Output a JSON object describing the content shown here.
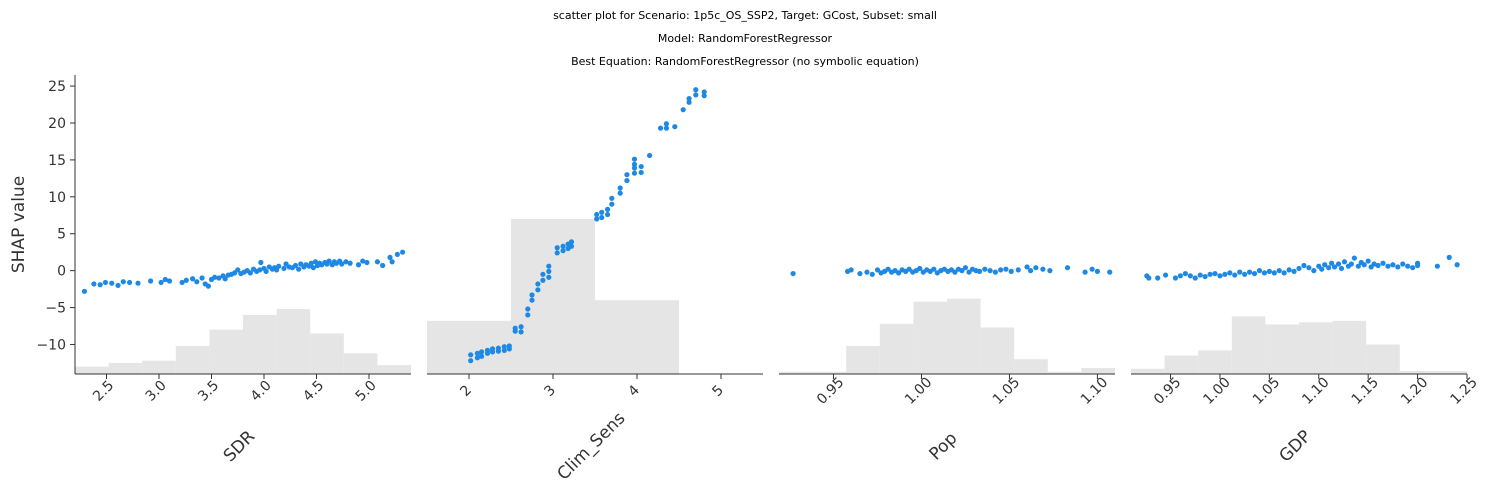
{
  "title_lines": [
    "scatter plot for Scenario: 1p5c_OS_SSP2, Target: GCost, Subset: small",
    "Model: RandomForestRegressor",
    "Best Equation: RandomForestRegressor (no symbolic equation)"
  ],
  "colors": {
    "points": "#1e88e5",
    "histogram": "#e5e5e5",
    "axis": "#333333"
  },
  "chart_data": [
    {
      "type": "scatter",
      "xlabel": "SDR",
      "ylabel": "SHAP value",
      "xlim": [
        2.2,
        5.4
      ],
      "ylim": [
        -14,
        26.5
      ],
      "xticks": [
        2.5,
        3.0,
        3.5,
        4.0,
        4.5,
        5.0
      ],
      "xtick_labels": [
        "2.5",
        "3.0",
        "3.5",
        "4.0",
        "4.5",
        "5.0"
      ],
      "yticks": [
        -10,
        -5,
        0,
        5,
        10,
        15,
        20,
        25
      ],
      "ytick_labels": [
        "−10",
        "−5",
        "0",
        "5",
        "10",
        "15",
        "20",
        "25"
      ],
      "histogram": {
        "edges": [
          2.2,
          2.52,
          2.84,
          3.16,
          3.48,
          3.8,
          4.12,
          4.44,
          4.76,
          5.08,
          5.4
        ],
        "tops": [
          -13.0,
          -12.5,
          -12.2,
          -10.2,
          -8.0,
          -6.0,
          -5.2,
          -8.5,
          -11.2,
          -12.8
        ]
      },
      "points": [
        [
          2.29,
          -2.8
        ],
        [
          2.38,
          -1.8
        ],
        [
          2.44,
          -1.9
        ],
        [
          2.49,
          -1.6
        ],
        [
          2.55,
          -1.7
        ],
        [
          2.61,
          -2.0
        ],
        [
          2.66,
          -1.5
        ],
        [
          2.72,
          -1.6
        ],
        [
          2.8,
          -1.7
        ],
        [
          2.92,
          -1.4
        ],
        [
          3.02,
          -1.6
        ],
        [
          3.06,
          -1.2
        ],
        [
          3.1,
          -1.4
        ],
        [
          3.22,
          -1.6
        ],
        [
          3.26,
          -1.3
        ],
        [
          3.32,
          -1.1
        ],
        [
          3.36,
          -1.5
        ],
        [
          3.41,
          -1.0
        ],
        [
          3.44,
          -1.8
        ],
        [
          3.47,
          -2.1
        ],
        [
          3.5,
          -1.2
        ],
        [
          3.53,
          -0.9
        ],
        [
          3.57,
          -1.0
        ],
        [
          3.61,
          -0.7
        ],
        [
          3.63,
          -1.1
        ],
        [
          3.66,
          -0.6
        ],
        [
          3.69,
          -0.5
        ],
        [
          3.72,
          -0.3
        ],
        [
          3.75,
          0.1
        ],
        [
          3.78,
          -0.4
        ],
        [
          3.81,
          -0.2
        ],
        [
          3.84,
          0.0
        ],
        [
          3.87,
          -0.3
        ],
        [
          3.9,
          0.2
        ],
        [
          3.93,
          -0.1
        ],
        [
          3.96,
          0.1
        ],
        [
          3.97,
          1.1
        ],
        [
          4.0,
          0.3
        ],
        [
          4.02,
          -0.1
        ],
        [
          4.05,
          0.5
        ],
        [
          4.08,
          0.2
        ],
        [
          4.1,
          0.4
        ],
        [
          4.12,
          0.1
        ],
        [
          4.14,
          0.6
        ],
        [
          4.19,
          0.3
        ],
        [
          4.21,
          0.9
        ],
        [
          4.24,
          0.5
        ],
        [
          4.27,
          0.4
        ],
        [
          4.3,
          0.7
        ],
        [
          4.33,
          0.2
        ],
        [
          4.35,
          0.9
        ],
        [
          4.38,
          0.5
        ],
        [
          4.4,
          0.8
        ],
        [
          4.43,
          0.6
        ],
        [
          4.45,
          1.0
        ],
        [
          4.47,
          0.4
        ],
        [
          4.49,
          1.2
        ],
        [
          4.51,
          0.7
        ],
        [
          4.53,
          1.0
        ],
        [
          4.55,
          0.8
        ],
        [
          4.58,
          1.1
        ],
        [
          4.6,
          0.9
        ],
        [
          4.62,
          1.3
        ],
        [
          4.65,
          0.8
        ],
        [
          4.67,
          1.2
        ],
        [
          4.69,
          1.0
        ],
        [
          4.72,
          1.3
        ],
        [
          4.74,
          0.9
        ],
        [
          4.78,
          1.2
        ],
        [
          4.82,
          1.0
        ],
        [
          4.9,
          0.8
        ],
        [
          4.94,
          1.3
        ],
        [
          4.98,
          1.1
        ],
        [
          5.08,
          1.2
        ],
        [
          5.13,
          0.7
        ],
        [
          5.2,
          1.8
        ],
        [
          5.22,
          1.2
        ],
        [
          5.27,
          2.2
        ],
        [
          5.32,
          2.5
        ]
      ]
    },
    {
      "type": "scatter",
      "xlabel": "Clim_Sens",
      "ylabel": "",
      "xlim": [
        1.5,
        5.5
      ],
      "ylim": [
        -14,
        26.5
      ],
      "xticks": [
        2,
        3,
        4,
        5
      ],
      "xtick_labels": [
        "2",
        "3",
        "4",
        "5"
      ],
      "yticks": [],
      "ytick_labels": [],
      "histogram": {
        "edges": [
          1.5,
          2.5,
          3.5,
          4.5,
          5.5
        ],
        "tops": [
          -6.8,
          7.0,
          -4.0,
          -14.0
        ]
      },
      "points": [
        [
          2.02,
          -12.2
        ],
        [
          2.02,
          -11.4
        ],
        [
          2.1,
          -11.8
        ],
        [
          2.1,
          -11.2
        ],
        [
          2.15,
          -11.6
        ],
        [
          2.15,
          -11.0
        ],
        [
          2.22,
          -11.2
        ],
        [
          2.22,
          -10.8
        ],
        [
          2.28,
          -11.0
        ],
        [
          2.28,
          -10.6
        ],
        [
          2.35,
          -10.9
        ],
        [
          2.35,
          -10.5
        ],
        [
          2.42,
          -10.8
        ],
        [
          2.42,
          -10.3
        ],
        [
          2.48,
          -10.6
        ],
        [
          2.48,
          -10.2
        ],
        [
          2.55,
          -8.2
        ],
        [
          2.55,
          -7.8
        ],
        [
          2.62,
          -8.3
        ],
        [
          2.62,
          -7.6
        ],
        [
          2.7,
          -6.0
        ],
        [
          2.7,
          -5.2
        ],
        [
          2.75,
          -4.0
        ],
        [
          2.75,
          -3.3
        ],
        [
          2.82,
          -2.6
        ],
        [
          2.82,
          -1.8
        ],
        [
          2.88,
          -1.3
        ],
        [
          2.88,
          -0.5
        ],
        [
          2.95,
          -0.9
        ],
        [
          2.95,
          -0.1
        ],
        [
          2.95,
          0.6
        ],
        [
          3.05,
          2.4
        ],
        [
          3.05,
          3.1
        ],
        [
          3.12,
          2.7
        ],
        [
          3.12,
          3.3
        ],
        [
          3.18,
          3.0
        ],
        [
          3.18,
          3.6
        ],
        [
          3.22,
          3.3
        ],
        [
          3.22,
          3.9
        ],
        [
          3.52,
          7.0
        ],
        [
          3.52,
          7.6
        ],
        [
          3.58,
          7.2
        ],
        [
          3.58,
          7.9
        ],
        [
          3.65,
          7.6
        ],
        [
          3.65,
          8.3
        ],
        [
          3.7,
          9.0
        ],
        [
          3.7,
          9.8
        ],
        [
          3.8,
          10.5
        ],
        [
          3.8,
          11.2
        ],
        [
          3.88,
          12.2
        ],
        [
          3.88,
          13.0
        ],
        [
          3.97,
          13.2
        ],
        [
          3.97,
          13.9
        ],
        [
          3.97,
          14.4
        ],
        [
          3.97,
          15.1
        ],
        [
          4.05,
          13.3
        ],
        [
          4.05,
          14.1
        ],
        [
          4.15,
          15.6
        ],
        [
          4.28,
          19.3
        ],
        [
          4.35,
          19.9
        ],
        [
          4.35,
          19.3
        ],
        [
          4.45,
          19.5
        ],
        [
          4.55,
          21.8
        ],
        [
          4.62,
          22.8
        ],
        [
          4.62,
          23.3
        ],
        [
          4.7,
          23.8
        ],
        [
          4.7,
          24.5
        ],
        [
          4.8,
          23.7
        ],
        [
          4.8,
          24.2
        ]
      ]
    },
    {
      "type": "scatter",
      "xlabel": "Pop",
      "ylabel": "",
      "xlim": [
        0.919,
        1.11
      ],
      "ylim": [
        -14,
        26.5
      ],
      "xticks": [
        0.95,
        1.0,
        1.05,
        1.1
      ],
      "xtick_labels": [
        "0.95",
        "1.00",
        "1.05",
        "1.10"
      ],
      "yticks": [],
      "ytick_labels": [],
      "histogram": {
        "edges": [
          0.919,
          0.9381,
          0.9572,
          0.9763,
          0.9954,
          1.0145,
          1.0336,
          1.0527,
          1.0718,
          1.0909,
          1.11
        ],
        "tops": [
          -13.7,
          -13.7,
          -10.2,
          -7.2,
          -4.2,
          -3.8,
          -7.7,
          -12.0,
          -13.7,
          -13.2
        ]
      },
      "points": [
        [
          0.927,
          -0.4
        ],
        [
          0.958,
          -0.1
        ],
        [
          0.96,
          0.1
        ],
        [
          0.965,
          -0.4
        ],
        [
          0.969,
          -0.2
        ],
        [
          0.972,
          -0.5
        ],
        [
          0.975,
          0.1
        ],
        [
          0.977,
          -0.3
        ],
        [
          0.979,
          -0.1
        ],
        [
          0.981,
          0.2
        ],
        [
          0.983,
          -0.2
        ],
        [
          0.985,
          0.0
        ],
        [
          0.987,
          -0.3
        ],
        [
          0.989,
          0.1
        ],
        [
          0.991,
          -0.1
        ],
        [
          0.993,
          0.2
        ],
        [
          0.995,
          -0.2
        ],
        [
          0.997,
          0.0
        ],
        [
          0.999,
          0.3
        ],
        [
          1.001,
          -0.2
        ],
        [
          1.003,
          0.1
        ],
        [
          1.005,
          -0.1
        ],
        [
          1.007,
          0.2
        ],
        [
          1.009,
          -0.3
        ],
        [
          1.011,
          0.0
        ],
        [
          1.013,
          0.2
        ],
        [
          1.015,
          -0.1
        ],
        [
          1.017,
          0.1
        ],
        [
          1.019,
          -0.2
        ],
        [
          1.021,
          0.2
        ],
        [
          1.023,
          0.0
        ],
        [
          1.025,
          0.4
        ],
        [
          1.027,
          -0.2
        ],
        [
          1.029,
          0.2
        ],
        [
          1.031,
          0.0
        ],
        [
          1.033,
          -0.1
        ],
        [
          1.036,
          0.2
        ],
        [
          1.039,
          0.0
        ],
        [
          1.042,
          -0.2
        ],
        [
          1.045,
          0.1
        ],
        [
          1.048,
          0.2
        ],
        [
          1.051,
          -0.1
        ],
        [
          1.055,
          0.1
        ],
        [
          1.06,
          0.5
        ],
        [
          1.062,
          0.0
        ],
        [
          1.065,
          0.4
        ],
        [
          1.069,
          0.2
        ],
        [
          1.073,
          0.0
        ],
        [
          1.083,
          0.4
        ],
        [
          1.093,
          -0.2
        ],
        [
          1.097,
          0.2
        ],
        [
          1.1,
          -0.1
        ],
        [
          1.107,
          -0.2
        ]
      ]
    },
    {
      "type": "scatter",
      "xlabel": "GDP",
      "ylabel": "",
      "xlim": [
        0.91,
        1.25
      ],
      "ylim": [
        -14,
        26.5
      ],
      "xticks": [
        0.95,
        1.0,
        1.05,
        1.1,
        1.15,
        1.2,
        1.25
      ],
      "xtick_labels": [
        "0.95",
        "1.00",
        "1.05",
        "1.10",
        "1.15",
        "1.20",
        "1.25"
      ],
      "yticks": [],
      "ytick_labels": [],
      "histogram": {
        "edges": [
          0.91,
          0.944,
          0.978,
          1.012,
          1.046,
          1.08,
          1.114,
          1.148,
          1.182,
          1.216,
          1.25
        ],
        "tops": [
          -13.3,
          -11.5,
          -10.8,
          -6.2,
          -7.3,
          -7.0,
          -6.8,
          -10.0,
          -13.6,
          -13.6
        ]
      },
      "points": [
        [
          0.926,
          -0.7
        ],
        [
          0.928,
          -1.0
        ],
        [
          0.937,
          -1.0
        ],
        [
          0.945,
          -0.6
        ],
        [
          0.955,
          -1.0
        ],
        [
          0.96,
          -0.7
        ],
        [
          0.965,
          -0.4
        ],
        [
          0.97,
          -0.7
        ],
        [
          0.975,
          -1.0
        ],
        [
          0.98,
          -0.6
        ],
        [
          0.985,
          -0.8
        ],
        [
          0.99,
          -0.5
        ],
        [
          0.995,
          -0.4
        ],
        [
          1.0,
          -0.7
        ],
        [
          1.005,
          -0.5
        ],
        [
          1.01,
          -0.3
        ],
        [
          1.015,
          -0.6
        ],
        [
          1.02,
          -0.2
        ],
        [
          1.025,
          -0.5
        ],
        [
          1.03,
          -0.2
        ],
        [
          1.035,
          -0.4
        ],
        [
          1.04,
          0.0
        ],
        [
          1.045,
          -0.3
        ],
        [
          1.05,
          -0.1
        ],
        [
          1.055,
          -0.3
        ],
        [
          1.06,
          0.0
        ],
        [
          1.065,
          -0.3
        ],
        [
          1.07,
          0.1
        ],
        [
          1.075,
          -0.1
        ],
        [
          1.08,
          0.3
        ],
        [
          1.085,
          0.7
        ],
        [
          1.09,
          0.4
        ],
        [
          1.095,
          0.0
        ],
        [
          1.1,
          0.6
        ],
        [
          1.103,
          0.2
        ],
        [
          1.106,
          0.8
        ],
        [
          1.11,
          0.4
        ],
        [
          1.113,
          1.0
        ],
        [
          1.116,
          0.5
        ],
        [
          1.12,
          0.9
        ],
        [
          1.123,
          0.3
        ],
        [
          1.126,
          1.2
        ],
        [
          1.13,
          0.6
        ],
        [
          1.133,
          0.9
        ],
        [
          1.136,
          1.7
        ],
        [
          1.14,
          0.6
        ],
        [
          1.143,
          1.1
        ],
        [
          1.146,
          0.8
        ],
        [
          1.15,
          1.3
        ],
        [
          1.153,
          0.5
        ],
        [
          1.156,
          0.9
        ],
        [
          1.16,
          0.7
        ],
        [
          1.165,
          1.0
        ],
        [
          1.17,
          0.6
        ],
        [
          1.175,
          0.8
        ],
        [
          1.18,
          0.5
        ],
        [
          1.185,
          0.9
        ],
        [
          1.19,
          0.6
        ],
        [
          1.195,
          0.4
        ],
        [
          1.2,
          1.0
        ],
        [
          1.2,
          0.7
        ],
        [
          1.22,
          0.6
        ],
        [
          1.232,
          1.8
        ],
        [
          1.24,
          0.8
        ]
      ]
    }
  ]
}
